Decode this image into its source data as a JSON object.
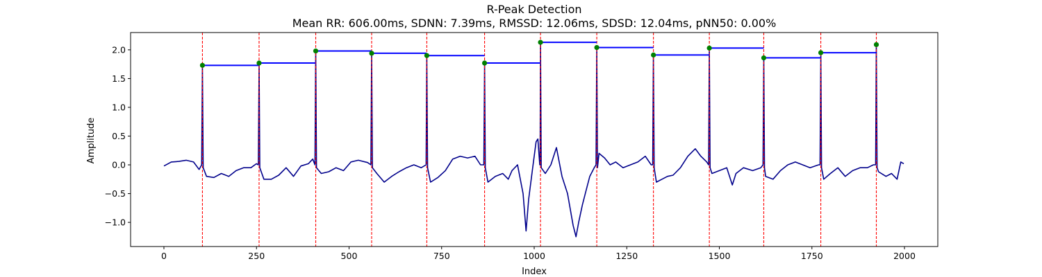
{
  "chart_data": {
    "type": "line",
    "title": "R-Peak Detection",
    "subtitle": "Mean RR: 606.00ms, SDNN: 7.39ms, RMSSD: 12.06ms, SDSD: 12.04ms, pNN50: 0.00%",
    "xlabel": "Index",
    "ylabel": "Amplitude",
    "xlim": [
      -90,
      2090
    ],
    "ylim": [
      -1.42,
      2.3
    ],
    "xticks": [
      0,
      250,
      500,
      750,
      1000,
      1250,
      1500,
      1750,
      2000
    ],
    "yticks": [
      -1.0,
      -0.5,
      0.0,
      0.5,
      1.0,
      1.5,
      2.0
    ],
    "xtick_labels": [
      "0",
      "250",
      "500",
      "750",
      "1000",
      "1250",
      "1500",
      "1750",
      "2000"
    ],
    "ytick_labels": [
      "−1.0",
      "−0.5",
      "0.0",
      "0.5",
      "1.0",
      "1.5",
      "2.0"
    ],
    "grid": false,
    "signal": {
      "color": "#00008b",
      "baseline_points": [
        [
          0,
          -0.02
        ],
        [
          20,
          0.05
        ],
        [
          40,
          0.06
        ],
        [
          60,
          0.08
        ],
        [
          80,
          0.05
        ],
        [
          95,
          -0.08
        ],
        [
          115,
          -0.2
        ],
        [
          135,
          -0.22
        ],
        [
          155,
          -0.15
        ],
        [
          175,
          -0.2
        ],
        [
          195,
          -0.1
        ],
        [
          215,
          -0.05
        ],
        [
          235,
          -0.05
        ],
        [
          250,
          0.02
        ],
        [
          270,
          -0.25
        ],
        [
          290,
          -0.25
        ],
        [
          310,
          -0.18
        ],
        [
          330,
          -0.05
        ],
        [
          350,
          -0.2
        ],
        [
          370,
          -0.02
        ],
        [
          390,
          0.02
        ],
        [
          402,
          0.1
        ],
        [
          425,
          -0.15
        ],
        [
          445,
          -0.12
        ],
        [
          465,
          -0.05
        ],
        [
          485,
          -0.1
        ],
        [
          505,
          0.05
        ],
        [
          525,
          0.08
        ],
        [
          550,
          0.04
        ],
        [
          575,
          -0.15
        ],
        [
          595,
          -0.3
        ],
        [
          615,
          -0.2
        ],
        [
          635,
          -0.12
        ],
        [
          655,
          -0.05
        ],
        [
          675,
          0.0
        ],
        [
          695,
          -0.05
        ],
        [
          720,
          -0.3
        ],
        [
          740,
          -0.22
        ],
        [
          760,
          -0.1
        ],
        [
          780,
          0.1
        ],
        [
          800,
          0.15
        ],
        [
          820,
          0.12
        ],
        [
          840,
          0.15
        ],
        [
          855,
          0.0
        ],
        [
          875,
          -0.3
        ],
        [
          895,
          -0.2
        ],
        [
          915,
          -0.15
        ],
        [
          930,
          -0.25
        ],
        [
          940,
          -0.1
        ],
        [
          955,
          0.0
        ],
        [
          970,
          -0.5
        ],
        [
          978,
          -1.15
        ],
        [
          985,
          -0.6
        ],
        [
          995,
          -0.1
        ],
        [
          1005,
          0.4
        ],
        [
          1010,
          0.45
        ],
        [
          1016,
          0.0
        ],
        [
          1030,
          -0.15
        ],
        [
          1045,
          0.0
        ],
        [
          1060,
          0.3
        ],
        [
          1075,
          -0.2
        ],
        [
          1090,
          -0.5
        ],
        [
          1105,
          -1.05
        ],
        [
          1113,
          -1.25
        ],
        [
          1120,
          -1.0
        ],
        [
          1130,
          -0.7
        ],
        [
          1140,
          -0.45
        ],
        [
          1150,
          -0.2
        ],
        [
          1162,
          -0.05
        ],
        [
          1175,
          0.2
        ],
        [
          1190,
          0.12
        ],
        [
          1205,
          0.0
        ],
        [
          1220,
          0.05
        ],
        [
          1240,
          -0.05
        ],
        [
          1260,
          0.0
        ],
        [
          1280,
          0.05
        ],
        [
          1300,
          0.15
        ],
        [
          1316,
          0.0
        ],
        [
          1330,
          -0.3
        ],
        [
          1345,
          -0.25
        ],
        [
          1360,
          -0.2
        ],
        [
          1375,
          -0.18
        ],
        [
          1395,
          -0.05
        ],
        [
          1415,
          0.15
        ],
        [
          1435,
          0.28
        ],
        [
          1450,
          0.15
        ],
        [
          1466,
          0.05
        ],
        [
          1480,
          -0.15
        ],
        [
          1500,
          -0.1
        ],
        [
          1520,
          -0.05
        ],
        [
          1535,
          -0.35
        ],
        [
          1545,
          -0.15
        ],
        [
          1565,
          -0.05
        ],
        [
          1590,
          -0.1
        ],
        [
          1612,
          -0.05
        ],
        [
          1625,
          -0.2
        ],
        [
          1645,
          -0.25
        ],
        [
          1665,
          -0.1
        ],
        [
          1685,
          0.0
        ],
        [
          1705,
          0.05
        ],
        [
          1725,
          0.0
        ],
        [
          1745,
          -0.05
        ],
        [
          1768,
          0.0
        ],
        [
          1782,
          -0.25
        ],
        [
          1800,
          -0.15
        ],
        [
          1820,
          -0.05
        ],
        [
          1840,
          -0.2
        ],
        [
          1860,
          -0.1
        ],
        [
          1880,
          -0.05
        ],
        [
          1900,
          -0.05
        ],
        [
          1916,
          0.0
        ],
        [
          1930,
          -0.12
        ],
        [
          1950,
          -0.2
        ],
        [
          1965,
          -0.15
        ],
        [
          1980,
          -0.25
        ],
        [
          1990,
          0.05
        ],
        [
          1998,
          0.02
        ]
      ]
    },
    "r_peaks": {
      "color": "#008000",
      "x": [
        104,
        257,
        410,
        561,
        710,
        866,
        1017,
        1169,
        1322,
        1473,
        1620,
        1774,
        1924
      ],
      "y": [
        1.73,
        1.77,
        1.98,
        1.94,
        1.9,
        1.77,
        2.13,
        2.04,
        1.91,
        2.03,
        1.86,
        1.95,
        2.09
      ]
    },
    "peak_lines_color": "#ff0000",
    "rr_segments_color": "#0000ff"
  }
}
